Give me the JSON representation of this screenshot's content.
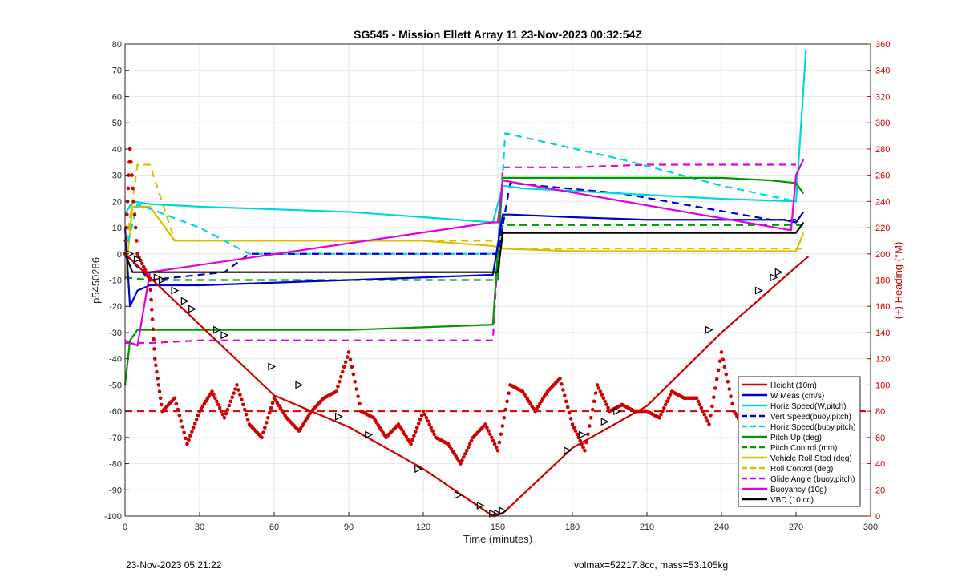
{
  "chart_data": {
    "type": "line",
    "title": "SG545 - Mission Ellett Array 11 23-Nov-2023 00:32:54Z",
    "xlabel": "Time (minutes)",
    "ylabel_left": "p5450286",
    "ylabel_right": "(+) Heading (°M)",
    "xlim": [
      0,
      300
    ],
    "ylim_left": [
      -100,
      80
    ],
    "ylim_right": [
      0,
      360
    ],
    "x_ticks": [
      "0",
      "30",
      "60",
      "90",
      "120",
      "150",
      "180",
      "210",
      "240",
      "270",
      "300"
    ],
    "y_left_ticks": [
      "-100",
      "-90",
      "-80",
      "-70",
      "-60",
      "-50",
      "-40",
      "-30",
      "-20",
      "-10",
      "0",
      "10",
      "20",
      "30",
      "40",
      "50",
      "60",
      "70",
      "80"
    ],
    "y_right_ticks": [
      "0",
      "20",
      "40",
      "60",
      "80",
      "100",
      "120",
      "140",
      "160",
      "180",
      "200",
      "220",
      "240",
      "260",
      "280",
      "300",
      "320",
      "340",
      "360"
    ],
    "grid": true,
    "legend_position": "bottom-right",
    "series": [
      {
        "name": "Height (10m)",
        "color": "#d00000",
        "style": "solid",
        "x": [
          0,
          10,
          30,
          60,
          90,
          120,
          148,
          152,
          180,
          210,
          240,
          270,
          275
        ],
        "y": [
          0,
          -9,
          -27,
          -54,
          -66,
          -82,
          -100,
          -99,
          -74,
          -58,
          -30,
          -5,
          -1
        ]
      },
      {
        "name": "W Meas (cm/s)",
        "color": "#0000cc",
        "style": "solid",
        "x": [
          0,
          2,
          5,
          10,
          30,
          60,
          90,
          120,
          148,
          152,
          155,
          180,
          210,
          240,
          265,
          270,
          273
        ],
        "y": [
          10,
          -20,
          -14,
          -12,
          -12,
          -11,
          -10,
          -9,
          -8,
          15,
          15,
          14,
          13,
          13,
          13,
          12,
          16
        ]
      },
      {
        "name": "Horiz Speed(W,pitch)",
        "color": "#00d8d8",
        "style": "solid",
        "x": [
          0,
          3,
          10,
          30,
          60,
          90,
          120,
          148,
          152,
          160,
          200,
          240,
          270,
          274
        ],
        "y": [
          15,
          20,
          19,
          18,
          17,
          16,
          14,
          12,
          26,
          25,
          23,
          21,
          20,
          78
        ]
      },
      {
        "name": "Vert Speed(buoy,pitch)",
        "color": "#0000cc",
        "style": "dashed",
        "x": [
          0,
          10,
          40,
          50,
          60,
          148,
          150,
          155,
          200,
          260,
          270
        ],
        "y": [
          0,
          -10,
          -7,
          0,
          0,
          0,
          0,
          27,
          23,
          13,
          13
        ]
      },
      {
        "name": "Horiz Speed(buoy,pitch)",
        "color": "#00d8d8",
        "style": "dashed",
        "x": [
          0,
          5,
          30,
          50,
          60,
          148,
          150,
          153,
          200,
          240,
          270
        ],
        "y": [
          0,
          19,
          10,
          0,
          0,
          0,
          0,
          46,
          36,
          26,
          20
        ]
      },
      {
        "name": "Pitch Up (deg)",
        "color": "#009900",
        "style": "solid",
        "x": [
          0,
          2,
          5,
          30,
          60,
          90,
          120,
          148,
          152,
          180,
          210,
          240,
          260,
          270,
          273
        ],
        "y": [
          -50,
          -33,
          -29,
          -29,
          -29,
          -29,
          -28,
          -27,
          29,
          29,
          29,
          29,
          28,
          27,
          23
        ]
      },
      {
        "name": "Pitch Control (mm)",
        "color": "#009900",
        "style": "dashed",
        "x": [
          0,
          10,
          148,
          150,
          152,
          270,
          273
        ],
        "y": [
          -9,
          -10,
          -10,
          -10,
          11,
          11,
          11
        ]
      },
      {
        "name": "Vehicle Roll Stbd (deg)",
        "color": "#d8c000",
        "style": "solid",
        "x": [
          0,
          3,
          10,
          20,
          30,
          60,
          90,
          120,
          148,
          152,
          180,
          210,
          240,
          270,
          273
        ],
        "y": [
          -10,
          18,
          18,
          5,
          5,
          5,
          5,
          5,
          3,
          2,
          1,
          1,
          1,
          1,
          8
        ]
      },
      {
        "name": "Roll Control (deg)",
        "color": "#d8c000",
        "style": "dashed",
        "x": [
          0,
          5,
          10,
          20,
          30,
          60,
          90,
          120,
          148,
          152,
          180,
          210,
          240,
          270,
          273
        ],
        "y": [
          0,
          34,
          34,
          5,
          5,
          5,
          5,
          5,
          5,
          2,
          2,
          2,
          2,
          2,
          2
        ]
      },
      {
        "name": "Glide Angle (buoy,pitch)",
        "color": "#e000e0",
        "style": "dashed",
        "x": [
          0,
          10,
          30,
          60,
          90,
          120,
          148,
          152,
          180,
          210,
          240,
          265,
          270
        ],
        "y": [
          -34,
          -34,
          -33,
          -33,
          -33,
          -33,
          -33,
          33,
          33,
          34,
          34,
          34,
          34
        ]
      },
      {
        "name": "Buoyancy (10g)",
        "color": "#e000e0",
        "style": "solid",
        "x": [
          0,
          5,
          10,
          148,
          150,
          152,
          268,
          270,
          273
        ],
        "y": [
          -33,
          -35,
          -7,
          12,
          12,
          28,
          9,
          30,
          36
        ]
      },
      {
        "name": "VBD (10 cc)",
        "color": "#000000",
        "style": "solid",
        "x": [
          0,
          3,
          10,
          148,
          150,
          152,
          270,
          273
        ],
        "y": [
          0,
          -7,
          -7,
          -7,
          -7,
          8,
          8,
          12
        ]
      }
    ],
    "heading": {
      "axis": "right",
      "color": "#d00000",
      "target": 80,
      "x": [
        0,
        2,
        5,
        10,
        12,
        15,
        20,
        25,
        30,
        35,
        40,
        45,
        50,
        55,
        60,
        65,
        70,
        75,
        80,
        85,
        90,
        95,
        100,
        105,
        110,
        115,
        120,
        125,
        130,
        135,
        140,
        145,
        150,
        155,
        160,
        165,
        170,
        175,
        180,
        185,
        190,
        195,
        200,
        205,
        210,
        215,
        220,
        225,
        230,
        235,
        240,
        245,
        250,
        255,
        260,
        265,
        270
      ],
      "y": [
        200,
        280,
        200,
        180,
        120,
        80,
        90,
        55,
        80,
        95,
        75,
        100,
        70,
        60,
        90,
        75,
        65,
        80,
        90,
        95,
        125,
        80,
        75,
        60,
        70,
        55,
        80,
        60,
        55,
        40,
        60,
        70,
        50,
        100,
        95,
        80,
        95,
        105,
        70,
        50,
        100,
        80,
        85,
        80,
        80,
        75,
        95,
        90,
        90,
        70,
        125,
        80,
        65,
        70,
        80,
        100,
        80
      ]
    },
    "dive_markers": {
      "x": [
        2,
        5,
        13,
        15,
        20,
        24,
        27,
        37,
        40,
        59,
        70,
        86,
        98,
        118,
        134,
        143,
        148,
        150,
        152,
        178,
        184,
        193,
        198,
        235,
        255,
        261,
        263
      ],
      "y": [
        0,
        -2,
        -9,
        -10,
        -14,
        -18,
        -21,
        -29,
        -31,
        -43,
        -50,
        -62,
        -69,
        -82,
        -92,
        -96,
        -99,
        -99,
        -98,
        -75,
        -69,
        -64,
        -60,
        -29,
        -14,
        -9,
        -7
      ]
    }
  },
  "footer": {
    "left": "23-Nov-2023 05:21:22",
    "right": "volmax=52217.8cc, mass=53.105kg"
  }
}
